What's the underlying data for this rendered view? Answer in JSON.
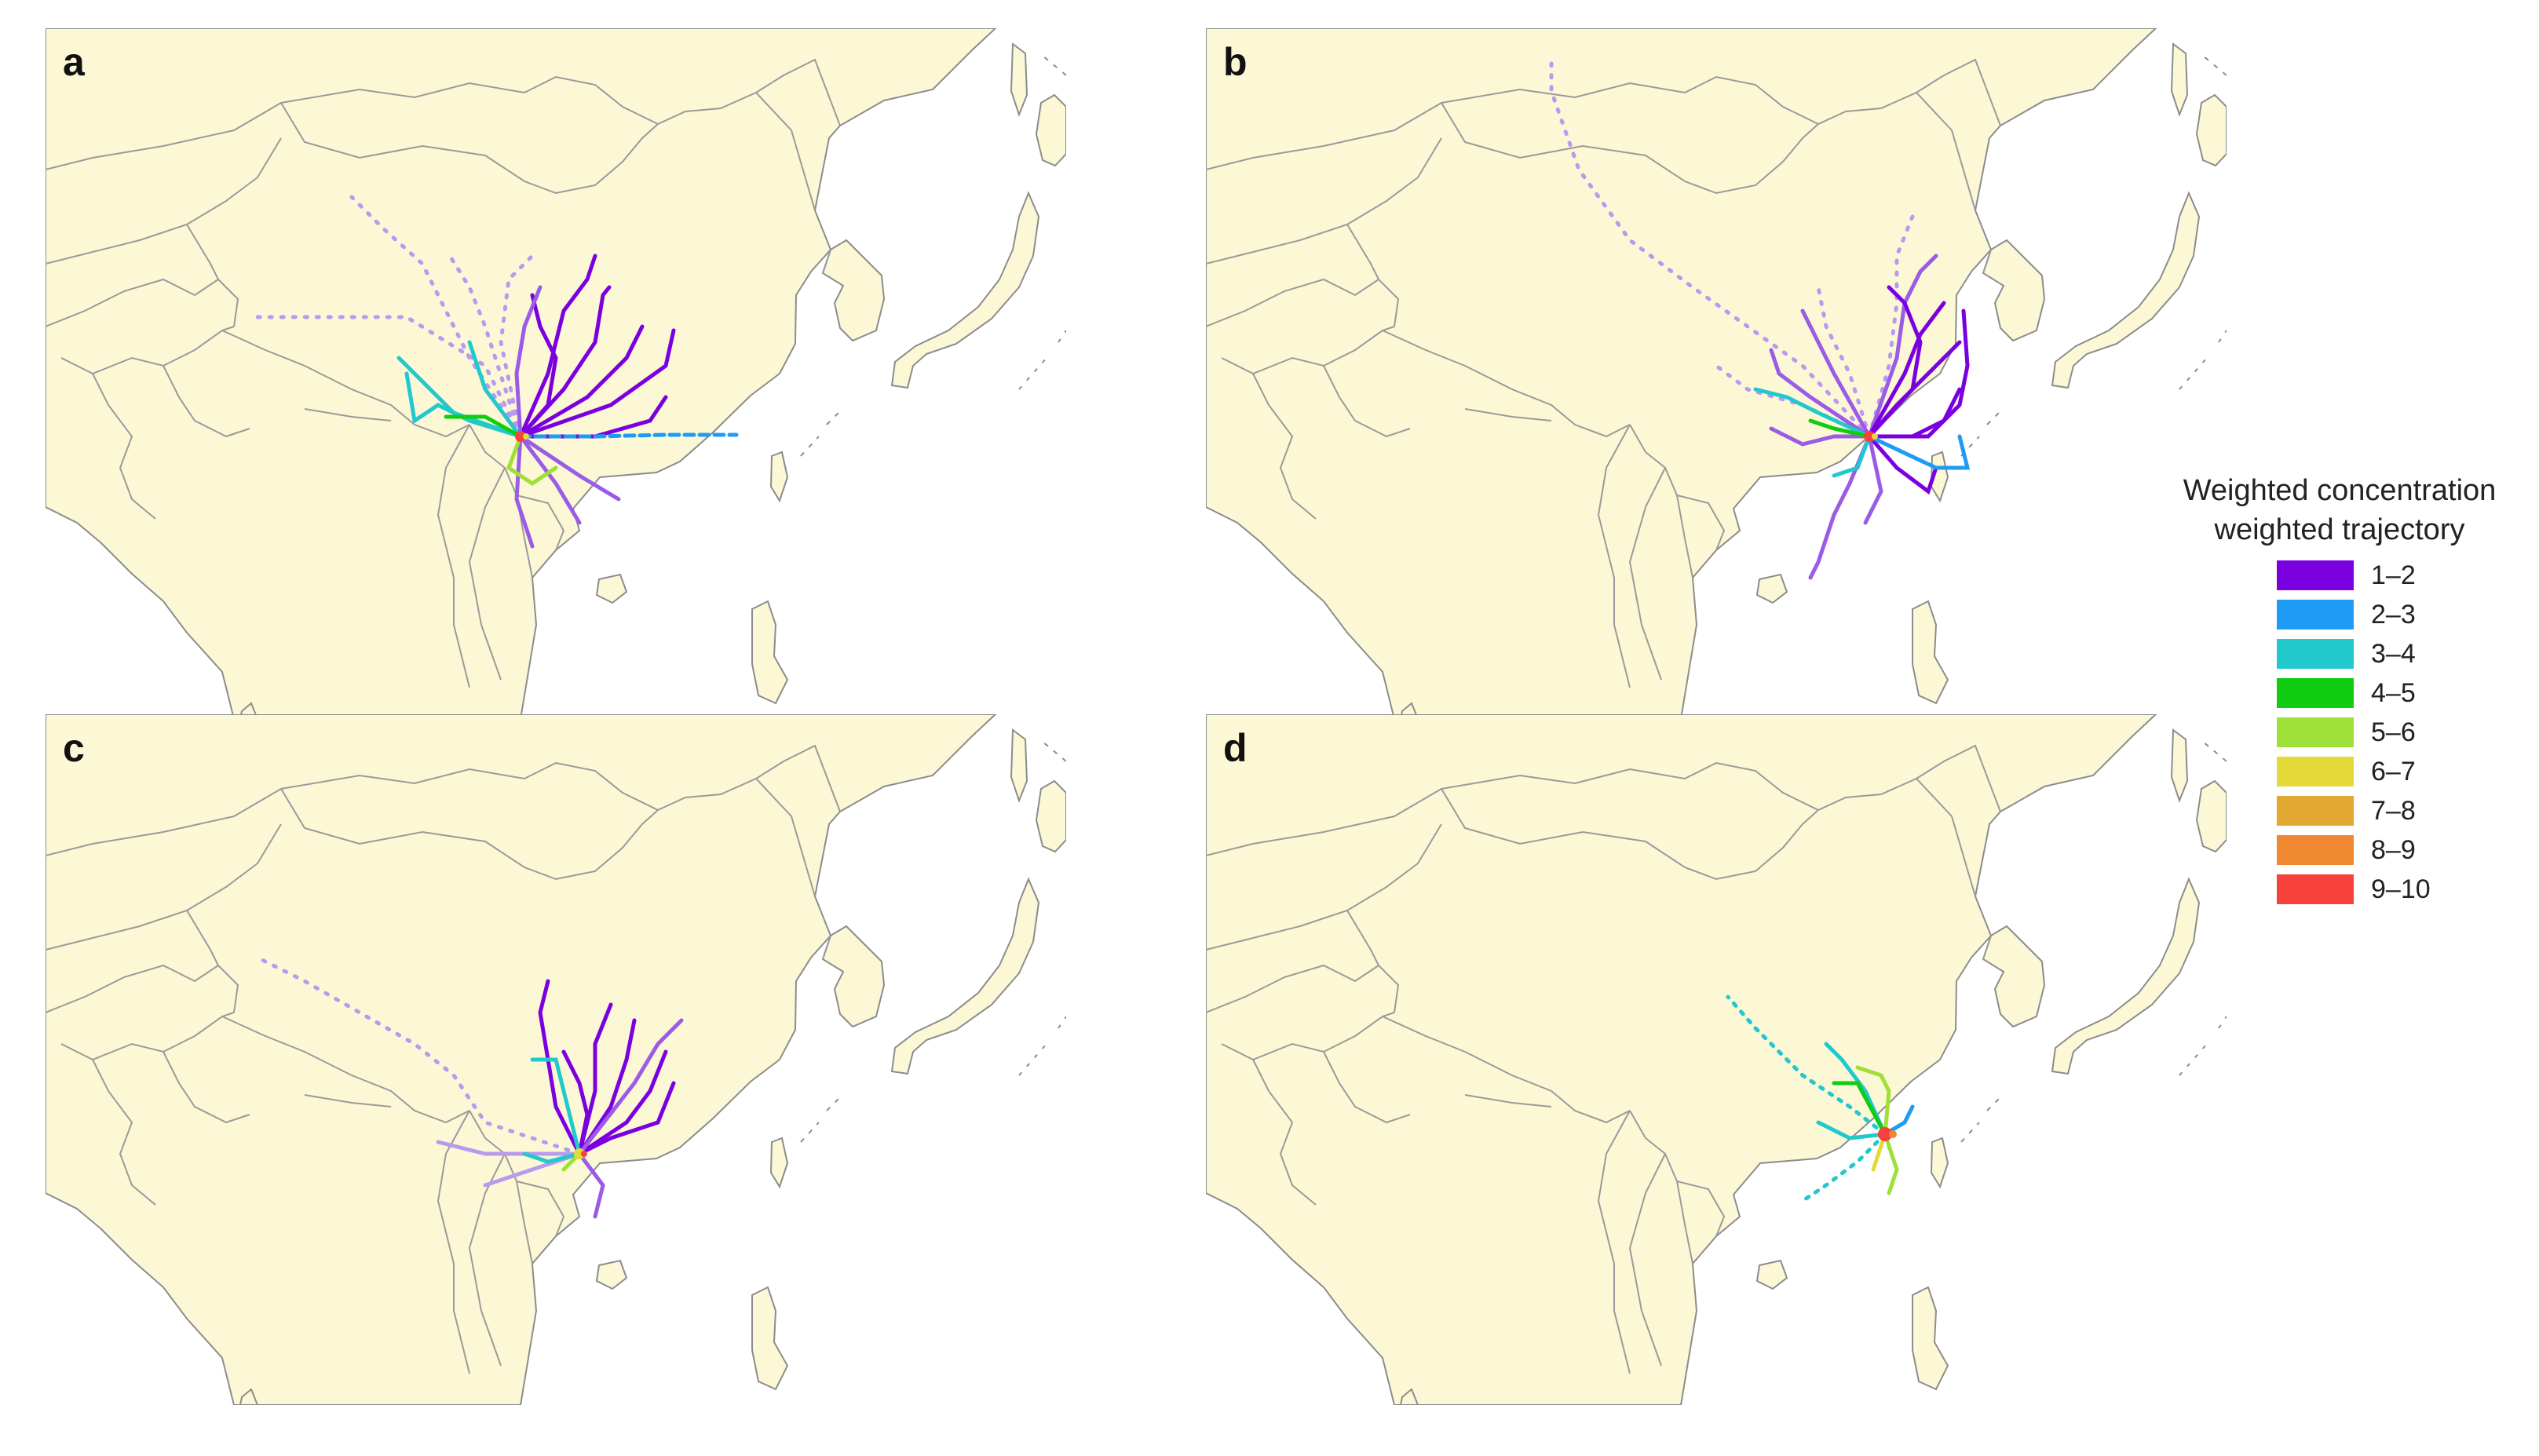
{
  "colors": {
    "land": "#FCF8D6",
    "sea": "#FFFFFF",
    "border": "#9A9A9A",
    "coast": "#8C8C8C"
  },
  "panels": [
    {
      "label": "a"
    },
    {
      "label": "b"
    },
    {
      "label": "c"
    },
    {
      "label": "d"
    }
  ],
  "legend": {
    "title_line1": "Weighted concentration",
    "title_line2": "weighted trajectory",
    "items": [
      {
        "label": "1–2",
        "color": "#7B00E0"
      },
      {
        "label": "2–3",
        "color": "#1E9CF5"
      },
      {
        "label": "3–4",
        "color": "#21C8CC"
      },
      {
        "label": "4–5",
        "color": "#12CC12"
      },
      {
        "label": "5–6",
        "color": "#9FE038"
      },
      {
        "label": "6–7",
        "color": "#E3DA3A"
      },
      {
        "label": "7–8",
        "color": "#E3A832"
      },
      {
        "label": "8–9",
        "color": "#EF8830"
      },
      {
        "label": "9–10",
        "color": "#F7423C"
      }
    ]
  }
}
